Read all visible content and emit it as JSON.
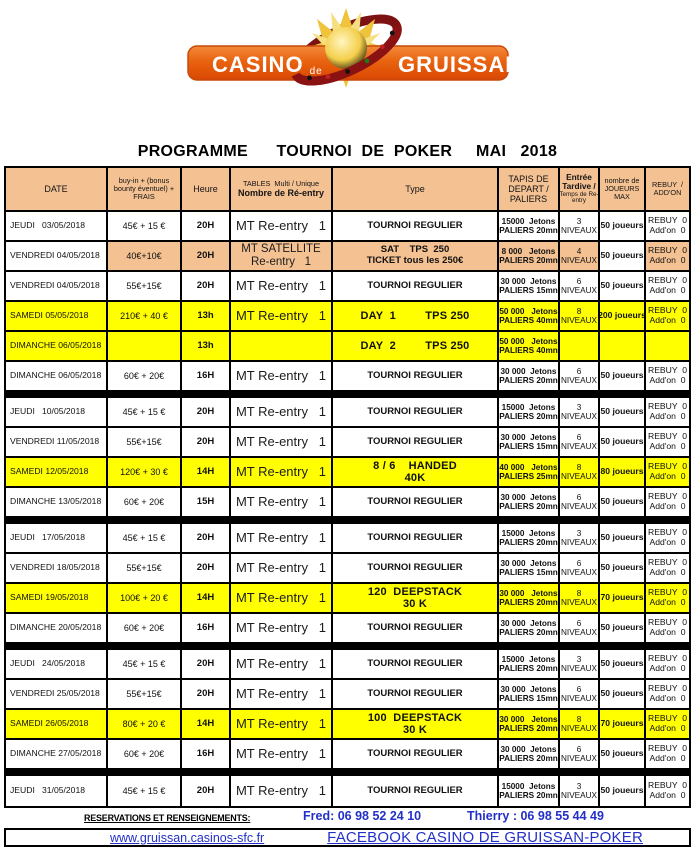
{
  "logo": {
    "casino": "CASINO",
    "de": "de",
    "gruissan": "GRUISSAN"
  },
  "title": "PROGRAMME      TOURNOI  DE  POKER     MAI   2018",
  "colors": {
    "header_orange": "#F4C193",
    "highlight_yellow": "#FFFF00",
    "footer_blue": "#2330C8",
    "logo_orange_top": "#F28A3C",
    "logo_orange_bottom": "#DD4E05"
  },
  "table": {
    "header": {
      "date": "DATE",
      "buyin_lines": [
        "buy-in + (bonus",
        "bounty éventuel) +",
        "FRAIS"
      ],
      "heure": "Heure",
      "tables_line1": "TABLES  Multi / Unique",
      "tables_line2": "Nombre de Ré-entry",
      "type": "Type",
      "tapis_lines": [
        "TAPIS DE",
        "DEPART /",
        "PALIERS"
      ],
      "entree_bold_lines": [
        "Entrée",
        "Tardive /"
      ],
      "entree_small_lines": [
        "Temps de Re-",
        "entry"
      ],
      "joueurs_lines": [
        "nombre de",
        "JOUEURS",
        "MAX"
      ],
      "rebuy_lines": [
        "REBUY  /",
        "ADD'ON"
      ]
    },
    "niveaux_suffix": "NIVEAUX",
    "rows": [
      {
        "date": "JEUDI   03/05/2018",
        "buyin": "45€ + 15 €",
        "heure": "20H",
        "tables": [
          "MT Re-entry   1"
        ],
        "type": [
          "TOURNOI REGULIER"
        ],
        "tapis": [
          "15000  Jetons",
          "PALIERS 20mn"
        ],
        "niveaux": "3",
        "joueurs": "50 joueurs",
        "rebuy": [
          "REBUY  0",
          "Add'on  0"
        ],
        "hl": "",
        "sep": false
      },
      {
        "date": "VENDREDI 04/05/2018",
        "buyin": "40€+10€",
        "heure": "20H",
        "tables": [
          "MT SATELLITE",
          "Re-entry   1"
        ],
        "type": [
          "SAT    TPS  250",
          "TICKET tous les 250€"
        ],
        "tapis": [
          "8 000   Jetons",
          "PALIERS 20mn"
        ],
        "niveaux": "4",
        "joueurs": "50 joueurs",
        "rebuy": [
          "REBUY  0",
          "Add'on  0"
        ],
        "hl": "orange",
        "sep": false
      },
      {
        "date": "VENDREDI 04/05/2018",
        "buyin": "55€+15€",
        "heure": "20H",
        "tables": [
          "MT Re-entry   1"
        ],
        "type": [
          "TOURNOI REGULIER"
        ],
        "tapis": [
          "30 000  Jetons",
          "PALIERS 15mn"
        ],
        "niveaux": "6",
        "joueurs": "50 joueurs",
        "rebuy": [
          "REBUY  0",
          "Add'on  0"
        ],
        "hl": "",
        "sep": false
      },
      {
        "date": "SAMEDI 05/05/2018",
        "buyin": "210€ + 40 €",
        "heure": "13h",
        "tables": [
          "MT Re-entry   1"
        ],
        "type": [
          "DAY  1         TPS 250"
        ],
        "tapis": [
          "50 000   Jetons",
          "PALIERS 40mn"
        ],
        "niveaux": "8",
        "joueurs": "200 joueurs",
        "rebuy": [
          "REBUY  0",
          "Add'on  0"
        ],
        "hl": "yellow",
        "sep": false
      },
      {
        "date": "DIMANCHE 06/05/2018",
        "buyin": "",
        "heure": "13h",
        "tables": [],
        "type": [
          "DAY  2         TPS 250"
        ],
        "tapis": [
          "50 000   Jetons",
          "PALIERS 40mn"
        ],
        "niveaux": "",
        "joueurs": "",
        "rebuy": [],
        "hl": "yellow",
        "sep": false
      },
      {
        "date": "DIMANCHE 06/05/2018",
        "buyin": "60€ + 20€",
        "heure": "16H",
        "tables": [
          "MT Re-entry   1"
        ],
        "type": [
          "TOURNOI REGULIER"
        ],
        "tapis": [
          "30 000  Jetons",
          "PALIERS 20mn"
        ],
        "niveaux": "6",
        "joueurs": "50 joueurs",
        "rebuy": [
          "REBUY  0",
          "Add'on  0"
        ],
        "hl": "",
        "sep": true
      },
      {
        "date": "JEUDI   10/05/2018",
        "buyin": "45€ + 15 €",
        "heure": "20H",
        "tables": [
          "MT Re-entry   1"
        ],
        "type": [
          "TOURNOI REGULIER"
        ],
        "tapis": [
          "15000  Jetons",
          "PALIERS 20mn"
        ],
        "niveaux": "3",
        "joueurs": "50 joueurs",
        "rebuy": [
          "REBUY  0",
          "Add'on  0"
        ],
        "hl": "",
        "sep": false
      },
      {
        "date": "VENDREDI 11/05/2018",
        "buyin": "55€+15€",
        "heure": "20H",
        "tables": [
          "MT Re-entry   1"
        ],
        "type": [
          "TOURNOI REGULIER"
        ],
        "tapis": [
          "30 000  Jetons",
          "PALIERS 15mn"
        ],
        "niveaux": "6",
        "joueurs": "50 joueurs",
        "rebuy": [
          "REBUY  0",
          "Add'on  0"
        ],
        "hl": "",
        "sep": false
      },
      {
        "date": "SAMEDI 12/05/2018",
        "buyin": "120€ + 30 €",
        "heure": "14H",
        "tables": [
          "MT Re-entry   1"
        ],
        "type": [
          "8 / 6    HANDED",
          "40K"
        ],
        "tapis": [
          "40 000   Jetons",
          "PALIERS 25mn"
        ],
        "niveaux": "8",
        "joueurs": "80 joueurs",
        "rebuy": [
          "REBUY  0",
          "Add'on  0"
        ],
        "hl": "yellow",
        "sep": false
      },
      {
        "date": "DIMANCHE 13/05/2018",
        "buyin": "60€ + 20€",
        "heure": "15H",
        "tables": [
          "MT Re-entry   1"
        ],
        "type": [
          "TOURNOI REGULIER"
        ],
        "tapis": [
          "30 000  Jetons",
          "PALIERS 20mn"
        ],
        "niveaux": "6",
        "joueurs": "50 joueurs",
        "rebuy": [
          "REBUY  0",
          "Add'on  0"
        ],
        "hl": "",
        "sep": true
      },
      {
        "date": "JEUDI   17/05/2018",
        "buyin": "45€ + 15 €",
        "heure": "20H",
        "tables": [
          "MT Re-entry   1"
        ],
        "type": [
          "TOURNOI REGULIER"
        ],
        "tapis": [
          "15000  Jetons",
          "PALIERS 20mn"
        ],
        "niveaux": "3",
        "joueurs": "50 joueurs",
        "rebuy": [
          "REBUY  0",
          "Add'on  0"
        ],
        "hl": "",
        "sep": false
      },
      {
        "date": "VENDREDI 18/05/2018",
        "buyin": "55€+15€",
        "heure": "20H",
        "tables": [
          "MT Re-entry   1"
        ],
        "type": [
          "TOURNOI REGULIER"
        ],
        "tapis": [
          "30 000  Jetons",
          "PALIERS 15mn"
        ],
        "niveaux": "6",
        "joueurs": "50 joueurs",
        "rebuy": [
          "REBUY  0",
          "Add'on  0"
        ],
        "hl": "",
        "sep": false
      },
      {
        "date": "SAMEDI 19/05/2018",
        "buyin": "100€ + 20 €",
        "heure": "14H",
        "tables": [
          "MT Re-entry   1"
        ],
        "type": [
          "120  DEEPSTACK",
          "30 K"
        ],
        "tapis": [
          "30 000   Jetons",
          "PALIERS 20mn"
        ],
        "niveaux": "8",
        "joueurs": "70 joueurs",
        "rebuy": [
          "REBUY  0",
          "Add'on  0"
        ],
        "hl": "yellow",
        "sep": false
      },
      {
        "date": "DIMANCHE 20/05/2018",
        "buyin": "60€ + 20€",
        "heure": "16H",
        "tables": [
          "MT Re-entry   1"
        ],
        "type": [
          "TOURNOI REGULIER"
        ],
        "tapis": [
          "30 000  Jetons",
          "PALIERS 20mn"
        ],
        "niveaux": "6",
        "joueurs": "50 joueurs",
        "rebuy": [
          "REBUY  0",
          "Add'on  0"
        ],
        "hl": "",
        "sep": true
      },
      {
        "date": "JEUDI   24/05/2018",
        "buyin": "45€ + 15 €",
        "heure": "20H",
        "tables": [
          "MT Re-entry   1"
        ],
        "type": [
          "TOURNOI REGULIER"
        ],
        "tapis": [
          "15000  Jetons",
          "PALIERS 20mn"
        ],
        "niveaux": "3",
        "joueurs": "50 joueurs",
        "rebuy": [
          "REBUY  0",
          "Add'on  0"
        ],
        "hl": "",
        "sep": false
      },
      {
        "date": "VENDREDI 25/05/2018",
        "buyin": "55€+15€",
        "heure": "20H",
        "tables": [
          "MT Re-entry   1"
        ],
        "type": [
          "TOURNOI REGULIER"
        ],
        "tapis": [
          "30 000  Jetons",
          "PALIERS 15mn"
        ],
        "niveaux": "6",
        "joueurs": "50 joueurs",
        "rebuy": [
          "REBUY  0",
          "Add'on  0"
        ],
        "hl": "",
        "sep": false
      },
      {
        "date": "SAMEDI 26/05/2018",
        "buyin": "80€ + 20 €",
        "heure": "14H",
        "tables": [
          "MT Re-entry   1"
        ],
        "type": [
          "100  DEEPSTACK",
          "30 K"
        ],
        "tapis": [
          "30 000   Jetons",
          "PALIERS 20mn"
        ],
        "niveaux": "8",
        "joueurs": "70 joueurs",
        "rebuy": [
          "REBUY  0",
          "Add'on  0"
        ],
        "hl": "yellow",
        "sep": false
      },
      {
        "date": "DIMANCHE 27/05/2018",
        "buyin": "60€ + 20€",
        "heure": "16H",
        "tables": [
          "MT Re-entry   1"
        ],
        "type": [
          "TOURNOI REGULIER"
        ],
        "tapis": [
          "30 000  Jetons",
          "PALIERS 20mn"
        ],
        "niveaux": "6",
        "joueurs": "50 joueurs",
        "rebuy": [
          "REBUY  0",
          "Add'on  0"
        ],
        "hl": "",
        "sep": true
      },
      {
        "date": "JEUDI   31/05/2018",
        "buyin": "45€ + 15 €",
        "heure": "20H",
        "tables": [
          "MT Re-entry   1"
        ],
        "type": [
          "TOURNOI REGULIER"
        ],
        "tapis": [
          "15000  Jetons",
          "PALIERS 20mn"
        ],
        "niveaux": "3",
        "joueurs": "50 joueurs",
        "rebuy": [
          "REBUY  0",
          "Add'on  0"
        ],
        "hl": "",
        "sep": false
      }
    ]
  },
  "footer": {
    "reservations_label": "RESERVATIONS ET RENSEIGNEMENTS:",
    "fred": "Fred:   06 98 52 24 10",
    "thierry": "Thierry :  06 98 55 44 49",
    "website": "www.gruissan.casinos-sfc.fr",
    "facebook": "FACEBOOK  CASINO DE GRUISSAN-POKER"
  }
}
